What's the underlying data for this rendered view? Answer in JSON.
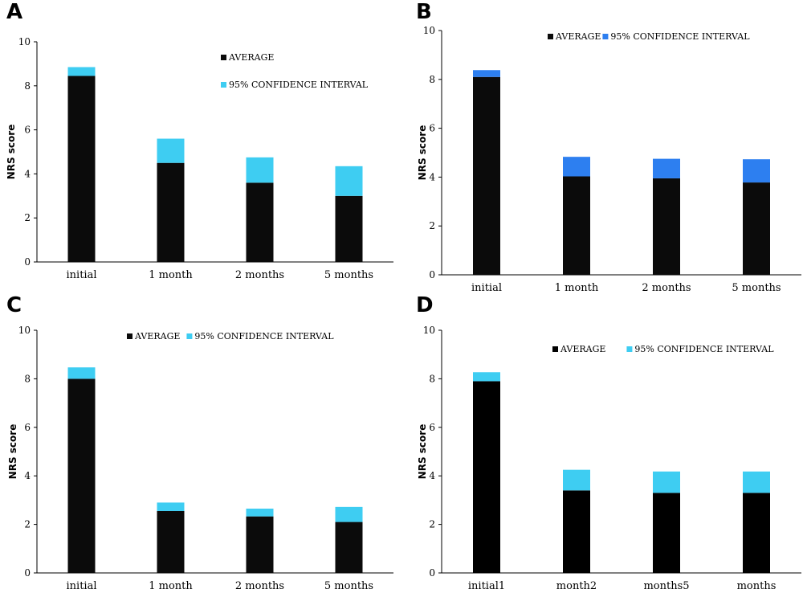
{
  "colors": {
    "average": "#0b0b0b",
    "ci_light": "#3ecdf2",
    "ci_blue": "#2d7ff0",
    "axis": "#000000"
  },
  "chart_data": [
    {
      "type": "bar",
      "panel": "A",
      "categories": [
        "initial",
        "1 month",
        "2 months",
        "5 months"
      ],
      "ylabel": "NRS score",
      "ylim": [
        0,
        10
      ],
      "yticks": [
        0,
        2,
        4,
        6,
        8,
        10
      ],
      "legend_placement": "top-right (stacked vertically)",
      "series": [
        {
          "name": "AVERAGE",
          "values": [
            8.45,
            4.5,
            3.6,
            3.0
          ],
          "color": "#0b0b0b"
        },
        {
          "name": "95% CONFIDENCE INTERVAL",
          "values": [
            0.4,
            1.1,
            1.15,
            1.35
          ],
          "color": "#3ecdf2"
        }
      ]
    },
    {
      "type": "bar",
      "panel": "B",
      "categories": [
        "initial",
        "1 month",
        "2 months",
        "5 months"
      ],
      "ylabel": "NRS score",
      "ylim": [
        0,
        10
      ],
      "yticks": [
        0,
        2,
        4,
        6,
        8,
        10
      ],
      "legend_placement": "top (single row)",
      "series": [
        {
          "name": "AVERAGE",
          "values": [
            8.1,
            4.03,
            3.95,
            3.78
          ],
          "color": "#0b0b0b"
        },
        {
          "name": "95% CONFIDENCE INTERVAL",
          "values": [
            0.28,
            0.8,
            0.8,
            0.95
          ],
          "color": "#2d7ff0"
        }
      ]
    },
    {
      "type": "bar",
      "panel": "C",
      "categories": [
        "initial",
        "1 month",
        "2 months",
        "5 months"
      ],
      "ylabel": "NRS score",
      "ylim": [
        0,
        10
      ],
      "yticks": [
        0,
        2,
        4,
        6,
        8,
        10
      ],
      "legend_placement": "top (single row)",
      "series": [
        {
          "name": "AVERAGE",
          "values": [
            8.0,
            2.55,
            2.33,
            2.1
          ],
          "color": "#0b0b0b"
        },
        {
          "name": "95% CONFIDENCE INTERVAL",
          "values": [
            0.47,
            0.35,
            0.32,
            0.62
          ],
          "color": "#3ecdf2"
        }
      ]
    },
    {
      "type": "bar",
      "panel": "D",
      "categories": [
        "initial1",
        "month2",
        "months5",
        "months"
      ],
      "ylabel": "NRS score",
      "ylim": [
        0,
        10
      ],
      "yticks": [
        0,
        2,
        4,
        6,
        8,
        10
      ],
      "legend_placement": "top (single row)",
      "series": [
        {
          "name": "AVERAGE",
          "values": [
            7.9,
            3.4,
            3.3,
            3.3
          ],
          "color": "#000000"
        },
        {
          "name": "95% CONFIDENCE INTERVAL",
          "values": [
            0.37,
            0.85,
            0.88,
            0.88
          ],
          "color": "#3ecdf2"
        }
      ]
    }
  ]
}
